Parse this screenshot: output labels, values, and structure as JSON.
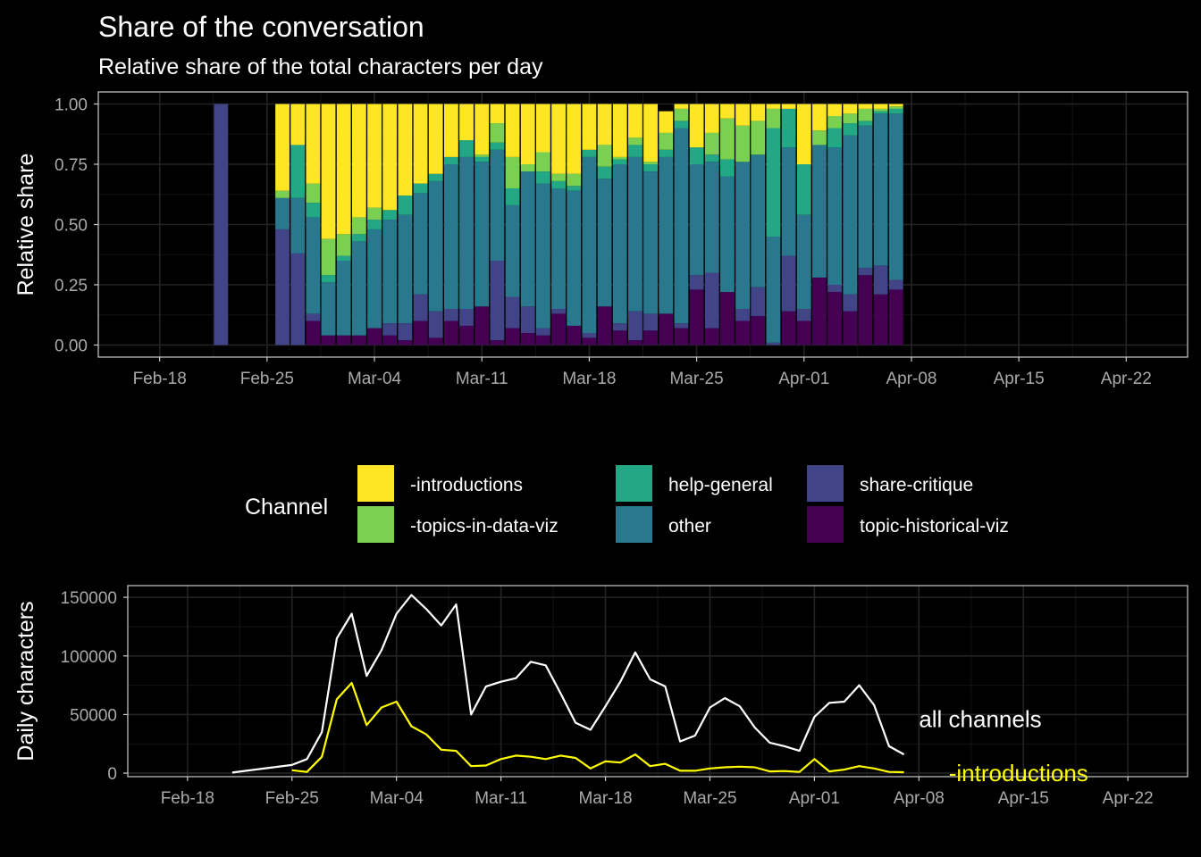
{
  "title": "Share of the conversation",
  "subtitle": "Relative share of the total characters per day",
  "colors": {
    "-introductions": "#FDE725",
    "-topics-in-data-viz": "#7AD151",
    "help-general": "#22A884",
    "other": "#2A788E",
    "share-critique": "#414487",
    "topic-historical-viz": "#440154",
    "all_channels_line": "#FFFFFF",
    "introductions_line": "#FFFF00"
  },
  "legend": {
    "title": "Channel",
    "items": [
      "-introductions",
      "-topics-in-data-viz",
      "help-general",
      "other",
      "share-critique",
      "topic-historical-viz"
    ]
  },
  "chart_data": [
    {
      "type": "bar",
      "stacked": true,
      "title": "Share of the conversation",
      "subtitle": "Relative share of the total characters per day",
      "xlabel": "",
      "ylabel": "Relative share",
      "xlim": [
        "2018-02-14",
        "2018-04-26"
      ],
      "ylim": [
        0,
        1
      ],
      "x_ticks": [
        "2018-02-18",
        "2018-02-25",
        "2018-03-04",
        "2018-03-11",
        "2018-03-18",
        "2018-03-25",
        "2018-04-01",
        "2018-04-08",
        "2018-04-15",
        "2018-04-22"
      ],
      "x_tick_labels": [
        "Feb-18",
        "Feb-25",
        "Mar-04",
        "Mar-11",
        "Mar-18",
        "Mar-25",
        "Apr-01",
        "Apr-08",
        "Apr-15",
        "Apr-22"
      ],
      "y_ticks": [
        0,
        0.25,
        0.5,
        0.75,
        1
      ],
      "y_tick_labels": [
        "0.00",
        "0.25",
        "0.50",
        "0.75",
        "1.00"
      ],
      "grid": true,
      "series_order_bottom_to_top": [
        "topic-historical-viz",
        "share-critique",
        "other",
        "help-general",
        "-topics-in-data-viz",
        "-introductions"
      ],
      "dates": [
        "2018-02-22",
        "2018-02-26",
        "2018-02-27",
        "2018-02-28",
        "2018-03-01",
        "2018-03-02",
        "2018-03-03",
        "2018-03-04",
        "2018-03-05",
        "2018-03-06",
        "2018-03-07",
        "2018-03-08",
        "2018-03-09",
        "2018-03-10",
        "2018-03-11",
        "2018-03-12",
        "2018-03-13",
        "2018-03-14",
        "2018-03-15",
        "2018-03-16",
        "2018-03-17",
        "2018-03-18",
        "2018-03-19",
        "2018-03-20",
        "2018-03-21",
        "2018-03-22",
        "2018-03-23",
        "2018-03-24",
        "2018-03-25",
        "2018-03-26",
        "2018-03-27",
        "2018-03-28",
        "2018-03-29",
        "2018-03-30",
        "2018-03-31",
        "2018-04-01",
        "2018-04-02",
        "2018-04-03",
        "2018-04-04",
        "2018-04-05",
        "2018-04-06",
        "2018-04-07"
      ],
      "series": [
        {
          "name": "topic-historical-viz",
          "values": [
            0,
            0,
            0,
            0.1,
            0.04,
            0.04,
            0.04,
            0.07,
            0.04,
            0.02,
            0.1,
            0.03,
            0.1,
            0.08,
            0.16,
            0.02,
            0.07,
            0.05,
            0.04,
            0.13,
            0.08,
            0.03,
            0.16,
            0.06,
            0.02,
            0.06,
            0.13,
            0.07,
            0.23,
            0.07,
            0.22,
            0.1,
            0.12,
            0.0,
            0.14,
            0.1,
            0.28,
            0.22,
            0.14,
            0.29,
            0.21,
            0.23
          ]
        },
        {
          "name": "share-critique",
          "values": [
            1.0,
            0.48,
            0.38,
            0.03,
            0,
            0,
            0,
            0,
            0.05,
            0.07,
            0.11,
            0.11,
            0.05,
            0.07,
            0,
            0.33,
            0.13,
            0.11,
            0.03,
            0.02,
            0,
            0.02,
            0,
            0.03,
            0.12,
            0.07,
            0,
            0.02,
            0.06,
            0.23,
            0,
            0.05,
            0.12,
            0.01,
            0.23,
            0.05,
            0,
            0.03,
            0.07,
            0.03,
            0.12,
            0.04
          ]
        },
        {
          "name": "other",
          "values": [
            0,
            0.13,
            0.23,
            0.4,
            0.22,
            0.31,
            0.39,
            0.41,
            0.43,
            0.45,
            0.42,
            0.54,
            0.6,
            0.63,
            0.6,
            0.46,
            0.38,
            0.56,
            0.6,
            0.5,
            0.56,
            0.73,
            0.53,
            0.66,
            0.64,
            0.59,
            0.65,
            0.81,
            0.46,
            0.46,
            0.48,
            0.61,
            0.55,
            0.44,
            0.45,
            0.39,
            0.55,
            0.57,
            0.66,
            0.59,
            0.63,
            0.69
          ]
        },
        {
          "name": "help-general",
          "values": [
            0,
            0,
            0.22,
            0.06,
            0.03,
            0.02,
            0.03,
            0.04,
            0.04,
            0.08,
            0.04,
            0.03,
            0.03,
            0.07,
            0.02,
            0.03,
            0.07,
            0,
            0.05,
            0.03,
            0.02,
            0.03,
            0.05,
            0.02,
            0.05,
            0.03,
            0.03,
            0.03,
            0.07,
            0.03,
            0.07,
            0,
            0,
            0.45,
            0.16,
            0.21,
            0,
            0.08,
            0.05,
            0.02,
            0.01,
            0.02
          ]
        },
        {
          "name": "-topics-in-data-viz",
          "values": [
            0,
            0.03,
            0,
            0.08,
            0.15,
            0.09,
            0.07,
            0.05,
            0,
            0,
            0,
            0,
            0,
            0,
            0.01,
            0.08,
            0.13,
            0.03,
            0.08,
            0.03,
            0.05,
            0,
            0.09,
            0.01,
            0.03,
            0.01,
            0.07,
            0.05,
            0,
            0.09,
            0.17,
            0.15,
            0.14,
            0.08,
            0,
            0,
            0.06,
            0.05,
            0.04,
            0.05,
            0.01,
            0.01
          ]
        },
        {
          "name": "-introductions",
          "values": [
            0,
            0.36,
            0.17,
            0.33,
            0.56,
            0.54,
            0.47,
            0.43,
            0.44,
            0.38,
            0.33,
            0.29,
            0.22,
            0.15,
            0.21,
            0.08,
            0.22,
            0.25,
            0.2,
            0.29,
            0.29,
            0.19,
            0.17,
            0.22,
            0.14,
            0.24,
            0.09,
            0.02,
            0.18,
            0.12,
            0.06,
            0.09,
            0.07,
            0.02,
            0.02,
            0.25,
            0.11,
            0.05,
            0.04,
            0.02,
            0.02,
            0.01
          ]
        }
      ]
    },
    {
      "type": "line",
      "xlabel": "",
      "ylabel": "Daily characters",
      "xlim": [
        "2018-02-14",
        "2018-04-26"
      ],
      "ylim": [
        -3000,
        160000
      ],
      "x_ticks": [
        "2018-02-18",
        "2018-02-25",
        "2018-03-04",
        "2018-03-11",
        "2018-03-18",
        "2018-03-25",
        "2018-04-01",
        "2018-04-08",
        "2018-04-15",
        "2018-04-22"
      ],
      "x_tick_labels": [
        "Feb-18",
        "Feb-25",
        "Mar-04",
        "Mar-11",
        "Mar-18",
        "Mar-25",
        "Apr-01",
        "Apr-08",
        "Apr-15",
        "Apr-22"
      ],
      "y_ticks": [
        0,
        50000,
        100000,
        150000
      ],
      "y_tick_labels": [
        "0",
        "50000",
        "100000",
        "150000"
      ],
      "grid": true,
      "series": [
        {
          "name": "all channels",
          "x": [
            "2018-02-21",
            "2018-02-25",
            "2018-02-26",
            "2018-02-27",
            "2018-02-28",
            "2018-03-01",
            "2018-03-02",
            "2018-03-03",
            "2018-03-04",
            "2018-03-05",
            "2018-03-06",
            "2018-03-07",
            "2018-03-08",
            "2018-03-09",
            "2018-03-10",
            "2018-03-11",
            "2018-03-12",
            "2018-03-13",
            "2018-03-14",
            "2018-03-15",
            "2018-03-16",
            "2018-03-17",
            "2018-03-18",
            "2018-03-19",
            "2018-03-20",
            "2018-03-21",
            "2018-03-22",
            "2018-03-23",
            "2018-03-24",
            "2018-03-25",
            "2018-03-26",
            "2018-03-27",
            "2018-03-28",
            "2018-03-29",
            "2018-03-30",
            "2018-03-31",
            "2018-04-01",
            "2018-04-02",
            "2018-04-03",
            "2018-04-04",
            "2018-04-05",
            "2018-04-06",
            "2018-04-07"
          ],
          "values": [
            500,
            7000,
            12000,
            35000,
            115000,
            136000,
            83000,
            105000,
            136000,
            152000,
            140000,
            126000,
            144000,
            50000,
            74000,
            78000,
            81000,
            95000,
            92000,
            68000,
            43000,
            37000,
            57000,
            78000,
            103000,
            80000,
            74000,
            27000,
            32000,
            56000,
            64000,
            57000,
            39000,
            26000,
            23000,
            19000,
            48000,
            60000,
            61000,
            75000,
            58000,
            23000,
            16000
          ]
        },
        {
          "name": "-introductions",
          "x": [
            "2018-02-25",
            "2018-02-26",
            "2018-02-27",
            "2018-02-28",
            "2018-03-01",
            "2018-03-02",
            "2018-03-03",
            "2018-03-04",
            "2018-03-05",
            "2018-03-06",
            "2018-03-07",
            "2018-03-08",
            "2018-03-09",
            "2018-03-10",
            "2018-03-11",
            "2018-03-12",
            "2018-03-13",
            "2018-03-14",
            "2018-03-15",
            "2018-03-16",
            "2018-03-17",
            "2018-03-18",
            "2018-03-19",
            "2018-03-20",
            "2018-03-21",
            "2018-03-22",
            "2018-03-23",
            "2018-03-24",
            "2018-03-25",
            "2018-03-26",
            "2018-03-27",
            "2018-03-28",
            "2018-03-29",
            "2018-03-30",
            "2018-03-31",
            "2018-04-01",
            "2018-04-02",
            "2018-04-03",
            "2018-04-04",
            "2018-04-05",
            "2018-04-06",
            "2018-04-07"
          ],
          "values": [
            2500,
            1000,
            14000,
            63000,
            77000,
            41000,
            56000,
            61000,
            40000,
            33000,
            20000,
            19000,
            6000,
            6500,
            12000,
            15000,
            14000,
            12000,
            15000,
            13000,
            4000,
            10000,
            9000,
            16000,
            6000,
            8000,
            2000,
            2000,
            4000,
            5000,
            5500,
            5000,
            1500,
            1800,
            1000,
            12000,
            1500,
            3000,
            6000,
            4000,
            1000,
            800
          ]
        }
      ],
      "annotations": [
        {
          "text": "all channels",
          "x": "2018-04-08",
          "y": 46000,
          "color": "#FFFFFF"
        },
        {
          "text": "-introductions",
          "x": "2018-04-10",
          "y": 0,
          "color": "#FFFF00"
        }
      ]
    }
  ]
}
